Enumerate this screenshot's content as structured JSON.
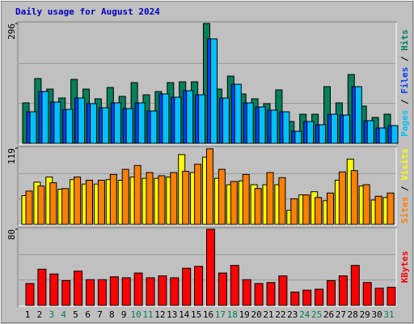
{
  "chart_data": [
    {
      "type": "bar",
      "title": "Daily usage for August 2024",
      "ylim": [
        0,
        296
      ],
      "yticks": [
        296
      ],
      "legend_separator": " / ",
      "series": [
        {
          "name": "Hits",
          "color": "#00805C",
          "values": [
            100,
            160,
            134,
            112,
            158,
            134,
            110,
            138,
            116,
            150,
            120,
            128,
            150,
            152,
            152,
            296,
            134,
            166,
            122,
            110,
            98,
            132,
            54,
            72,
            72,
            140,
            100,
            170,
            92,
            64,
            72
          ]
        },
        {
          "name": "Files",
          "color": "#0040FF",
          "values": [
            78,
            128,
            102,
            84,
            112,
            98,
            88,
            100,
            86,
            100,
            80,
            122,
            114,
            130,
            120,
            258,
            112,
            146,
            100,
            90,
            82,
            78,
            30,
            54,
            46,
            72,
            70,
            140,
            56,
            38,
            44
          ]
        },
        {
          "name": "Pages",
          "color": "#00C0FF",
          "values": [
            78,
            128,
            102,
            84,
            112,
            98,
            88,
            100,
            86,
            100,
            80,
            122,
            114,
            130,
            120,
            258,
            112,
            146,
            100,
            90,
            82,
            78,
            30,
            54,
            46,
            72,
            70,
            140,
            56,
            38,
            44
          ]
        }
      ]
    },
    {
      "type": "bar",
      "ylim": [
        0,
        119
      ],
      "yticks": [
        119
      ],
      "legend_separator": " / ",
      "series": [
        {
          "name": "Visits",
          "color": "#FFFF00",
          "values": [
            45,
            66,
            74,
            55,
            70,
            63,
            63,
            70,
            69,
            74,
            72,
            72,
            74,
            109,
            81,
            105,
            72,
            62,
            68,
            62,
            62,
            62,
            22,
            46,
            51,
            37,
            69,
            102,
            60,
            38,
            42
          ]
        },
        {
          "name": "Sites",
          "color": "#FF8000",
          "values": [
            52,
            60,
            65,
            56,
            74,
            69,
            69,
            78,
            86,
            92,
            81,
            76,
            81,
            83,
            94,
            118,
            86,
            67,
            78,
            56,
            81,
            73,
            40,
            46,
            42,
            49,
            82,
            84,
            62,
            44,
            49
          ]
        }
      ]
    },
    {
      "type": "bar",
      "ylim": [
        0,
        80
      ],
      "yticks": [
        80
      ],
      "categories": [
        "1",
        "2",
        "3",
        "4",
        "5",
        "6",
        "7",
        "8",
        "9",
        "10",
        "11",
        "12",
        "13",
        "14",
        "15",
        "16",
        "17",
        "18",
        "19",
        "20",
        "21",
        "22",
        "23",
        "24",
        "25",
        "26",
        "27",
        "28",
        "29",
        "30",
        "31"
      ],
      "highlight_indices": [
        2,
        3,
        9,
        10,
        16,
        17,
        23,
        24,
        30
      ],
      "highlight_color": "#00805C",
      "series": [
        {
          "name": "KBytes",
          "color": "#FF0000",
          "values": [
            23,
            38,
            33,
            26,
            36,
            27,
            27,
            30,
            29,
            34,
            29,
            31,
            29,
            39,
            41,
            80,
            34,
            42,
            27,
            23,
            24,
            31,
            14,
            16,
            17,
            26,
            31,
            42,
            24,
            18,
            19
          ]
        }
      ]
    }
  ]
}
